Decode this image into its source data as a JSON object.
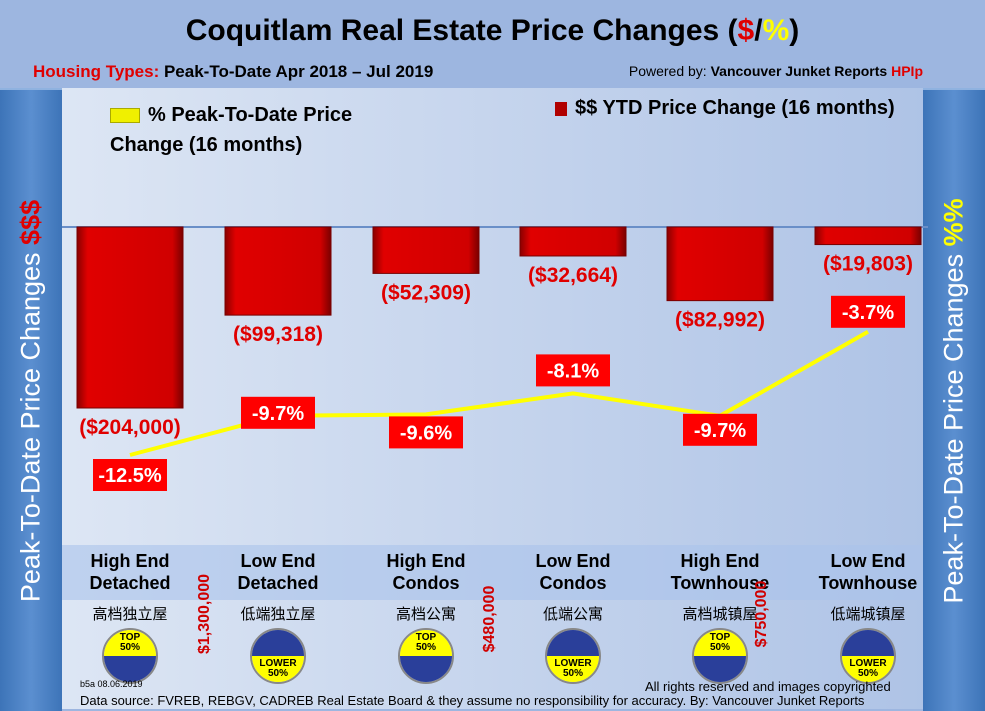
{
  "title": {
    "main": "Coquitlam Real Estate Price Changes (",
    "dollar": "$",
    "slash": "/",
    "pct": "%",
    "close": ")"
  },
  "subtitle": {
    "label": "Housing Types:",
    "text": " Peak-To-Date Apr 2018 – Jul 2019"
  },
  "powered": {
    "prefix": "Powered by: ",
    "brand": "Vancouver Junket Reports ",
    "hpi": "HPIp"
  },
  "side": {
    "left": "Peak-To-Date Price Changes ",
    "left_sym": "$$$",
    "right": "Peak-To-Date  Price  Changes ",
    "right_sym": "%%"
  },
  "chart_data": {
    "type": "bar",
    "categories": [
      "High End Detached",
      "Low End Detached",
      "High End Condos",
      "Low End Condos",
      "High End Townhouse",
      "Low End Townhouse"
    ],
    "series": [
      {
        "name": "$$ YTD Price Change (16 months)",
        "type": "bar",
        "values": [
          -204000,
          -99318,
          -52309,
          -32664,
          -82992,
          -19803
        ],
        "labels": [
          "($204,000)",
          "($99,318)",
          "($52,309)",
          "($32,664)",
          "($82,992)",
          "($19,803)"
        ],
        "color": "#d40000"
      },
      {
        "name": "% Peak-To-Date Price Change (16 months)",
        "type": "line",
        "values": [
          -12.5,
          -9.7,
          -9.6,
          -8.1,
          -9.7,
          -3.7
        ],
        "labels": [
          "-12.5%",
          "-9.7%",
          "-9.6%",
          "-8.1%",
          "-9.7%",
          "-3.7%"
        ],
        "color": "#ffff00"
      }
    ],
    "legend": {
      "line": "% Peak-To-Date Price",
      "line2": "Change (16 months)",
      "bar": "$$ YTD Price Change (16 months)"
    }
  },
  "categories": [
    {
      "l1": "High End",
      "l2": "Detached",
      "cn": "高档独立屋",
      "badge": "top",
      "b1": "TOP",
      "b2": "50%"
    },
    {
      "l1": "Low End",
      "l2": "Detached",
      "cn": "低端独立屋",
      "badge": "lower",
      "b1": "LOWER",
      "b2": "50%"
    },
    {
      "l1": "High End",
      "l2": "Condos",
      "cn": "高档公寓",
      "badge": "top",
      "b1": "TOP",
      "b2": "50%"
    },
    {
      "l1": "Low End",
      "l2": "Condos",
      "cn": "低端公寓",
      "badge": "lower",
      "b1": "LOWER",
      "b2": "50%"
    },
    {
      "l1": "High End",
      "l2": "Townhouse",
      "cn": "高档城镇屋",
      "badge": "top",
      "b1": "TOP",
      "b2": "50%"
    },
    {
      "l1": "Low End",
      "l2": "Townhouse",
      "cn": "低端城镇屋",
      "badge": "lower",
      "b1": "LOWER",
      "b2": "50%"
    }
  ],
  "thresholds": [
    "$1,300,000",
    "$480,000",
    "$750,000"
  ],
  "footer": {
    "version": "b5a 08.06.2019",
    "rights": "All rights reserved and  images copyrighted",
    "source": "Data source: FVREB, REBGV, CADREB Real Estate Board & they assume no responsibility for accuracy. By: Vancouver Junket Reports"
  }
}
